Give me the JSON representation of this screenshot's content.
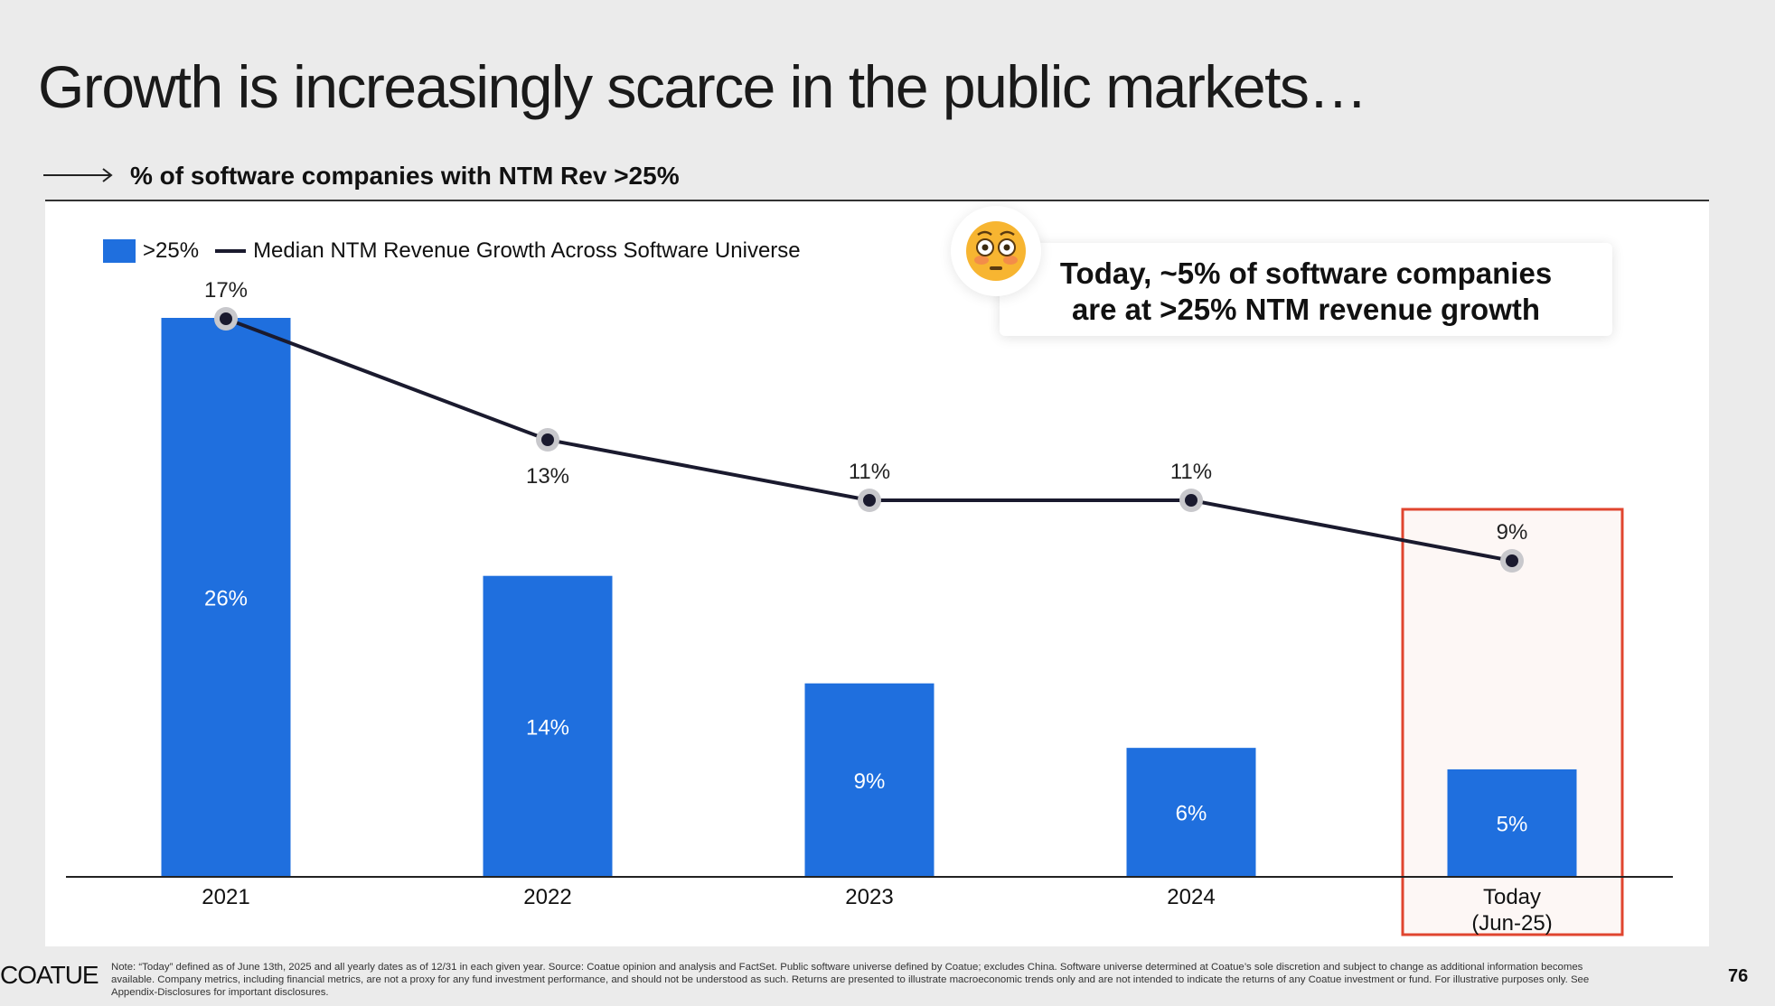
{
  "title": "Growth is increasingly scarce in the public markets…",
  "subtitle": "% of software companies with NTM Rev >25%",
  "callout": {
    "line1": "Today, ~5% of software companies",
    "line2": "are at >25% NTM revenue growth",
    "icon": "flushed-face-emoji"
  },
  "footer": {
    "logo": "COATUE",
    "note": "Note: “Today” defined as of June 13th, 2025 and all yearly dates as of 12/31 in each given year.  Source: Coatue opinion and analysis and FactSet. Public software universe defined by Coatue; excludes China. Software universe determined at Coatue’s sole discretion and subject to change as additional information becomes available. Company metrics, including financial metrics, are not a proxy for any fund investment performance, and should not be understood as such. Returns are presented to illustrate macroeconomic trends only and are not intended to indicate the returns of any Coatue investment or fund. For illustrative purposes only. See Appendix-Disclosures for important disclosures.",
    "page": "76"
  },
  "colors": {
    "bar": "#1f6fde",
    "line": "#1a1a2e",
    "highlight": "#e0452f"
  },
  "chart_data": {
    "type": "bar",
    "title": "% of software companies with NTM Rev >25%",
    "categories": [
      "2021",
      "2022",
      "2023",
      "2024",
      "Today (Jun-25)"
    ],
    "category_lines": [
      [
        "2021"
      ],
      [
        "2022"
      ],
      [
        "2023"
      ],
      [
        "2024"
      ],
      [
        "Today",
        "(Jun-25)"
      ]
    ],
    "series": [
      {
        "name": ">25%",
        "type": "bar",
        "values": [
          26,
          14,
          9,
          6,
          5
        ],
        "labels": [
          "26%",
          "14%",
          "9%",
          "6%",
          "5%"
        ]
      },
      {
        "name": "Median NTM Revenue Growth Across Software Universe",
        "type": "line",
        "values": [
          17,
          13,
          11,
          11,
          9
        ],
        "labels": [
          "17%",
          "13%",
          "11%",
          "11%",
          "9%"
        ]
      }
    ],
    "legend": "top-left",
    "highlighted_category": "Today (Jun-25)",
    "ylim": [
      0,
      26
    ]
  }
}
